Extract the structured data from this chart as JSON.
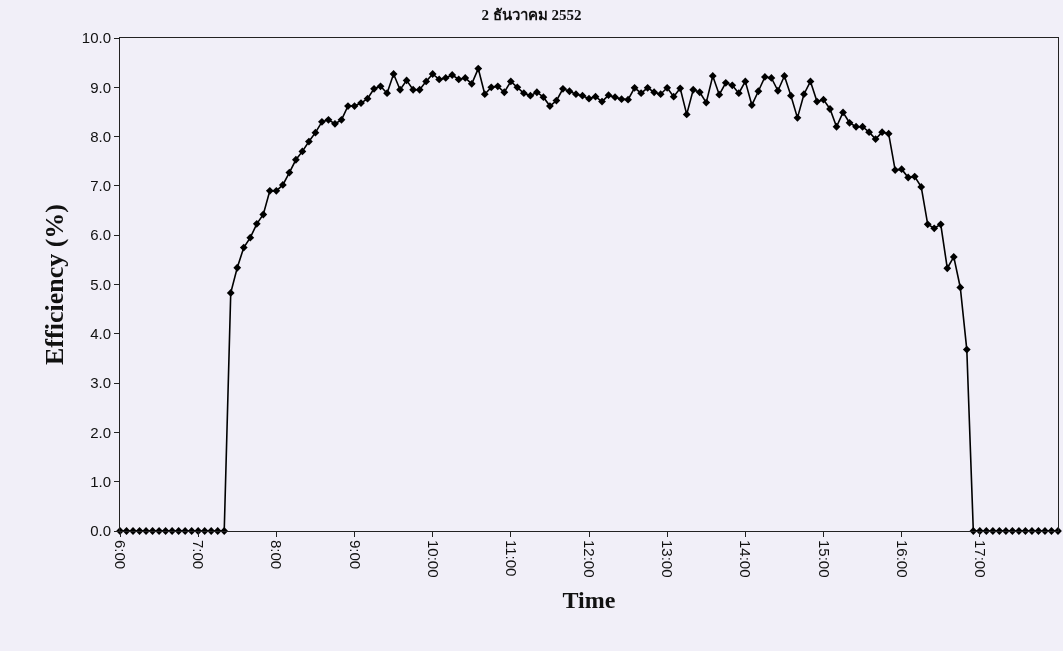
{
  "chart_data": {
    "type": "line",
    "title": "2 ธันวาคม 2552",
    "xlabel": "Time",
    "ylabel": "Efficiency (%)",
    "x": [
      6,
      6.0833,
      6.1667,
      6.25,
      6.3333,
      6.4167,
      6.5,
      6.5833,
      6.6667,
      6.75,
      6.8333,
      6.9167,
      7,
      7.0833,
      7.1667,
      7.25,
      7.3333,
      7.4167,
      7.5,
      7.5833,
      7.6667,
      7.75,
      7.8333,
      7.9167,
      8,
      8.0833,
      8.1667,
      8.25,
      8.3333,
      8.4167,
      8.5,
      8.5833,
      8.6667,
      8.75,
      8.8333,
      8.9167,
      9,
      9.0833,
      9.1667,
      9.25,
      9.3333,
      9.4167,
      9.5,
      9.5833,
      9.6667,
      9.75,
      9.8333,
      9.9167,
      10,
      10.0833,
      10.1667,
      10.25,
      10.3333,
      10.4167,
      10.5,
      10.5833,
      10.6667,
      10.75,
      10.8333,
      10.9167,
      11,
      11.0833,
      11.1667,
      11.25,
      11.3333,
      11.4167,
      11.5,
      11.5833,
      11.6667,
      11.75,
      11.8333,
      11.9167,
      12,
      12.0833,
      12.1667,
      12.25,
      12.3333,
      12.4167,
      12.5,
      12.5833,
      12.6667,
      12.75,
      12.8333,
      12.9167,
      13,
      13.0833,
      13.1667,
      13.25,
      13.3333,
      13.4167,
      13.5,
      13.5833,
      13.6667,
      13.75,
      13.8333,
      13.9167,
      14,
      14.0833,
      14.1667,
      14.25,
      14.3333,
      14.4167,
      14.5,
      14.5833,
      14.6667,
      14.75,
      14.8333,
      14.9167,
      15,
      15.0833,
      15.1667,
      15.25,
      15.3333,
      15.4167,
      15.5,
      15.5833,
      15.6667,
      15.75,
      15.8333,
      15.9167,
      16,
      16.0833,
      16.1667,
      16.25,
      16.3333,
      16.4167,
      16.5,
      16.5833,
      16.6667,
      16.75,
      16.8333,
      16.9167,
      17,
      17.0833,
      17.1667,
      17.25,
      17.3333,
      17.4167,
      17.5,
      17.5833,
      17.6667,
      17.75,
      17.8333,
      17.9167,
      18
    ],
    "series": [
      {
        "color": "#000000",
        "values": [
          0,
          0,
          0,
          0,
          0,
          0,
          0,
          0,
          0,
          0,
          0,
          0,
          0,
          0,
          0,
          0,
          0,
          4.83,
          5.34,
          5.75,
          5.95,
          6.23,
          6.42,
          6.9,
          6.9,
          7.02,
          7.27,
          7.53,
          7.7,
          7.9,
          8.08,
          8.3,
          8.34,
          8.26,
          8.34,
          8.62,
          8.62,
          8.68,
          8.77,
          8.97,
          9.02,
          8.88,
          9.27,
          8.95,
          9.14,
          8.95,
          8.95,
          9.12,
          9.27,
          9.16,
          9.19,
          9.25,
          9.16,
          9.19,
          9.07,
          9.38,
          8.86,
          9.0,
          9.02,
          8.9,
          9.12,
          9.0,
          8.88,
          8.83,
          8.9,
          8.8,
          8.62,
          8.73,
          8.97,
          8.92,
          8.86,
          8.83,
          8.77,
          8.81,
          8.71,
          8.84,
          8.8,
          8.76,
          8.75,
          8.99,
          8.88,
          8.99,
          8.9,
          8.86,
          8.99,
          8.81,
          8.98,
          8.45,
          8.95,
          8.9,
          8.69,
          9.23,
          8.85,
          9.09,
          9.04,
          8.88,
          9.12,
          8.64,
          8.92,
          9.21,
          9.19,
          8.93,
          9.23,
          8.83,
          8.38,
          8.86,
          9.12,
          8.71,
          8.75,
          8.56,
          8.2,
          8.49,
          8.28,
          8.2,
          8.2,
          8.09,
          7.95,
          8.09,
          8.06,
          7.32,
          7.34,
          7.17,
          7.19,
          6.98,
          6.22,
          6.14,
          6.22,
          5.33,
          5.56,
          4.94,
          3.68,
          0,
          0,
          0,
          0,
          0,
          0,
          0,
          0,
          0,
          0,
          0,
          0,
          0,
          0
        ]
      }
    ],
    "xlim": [
      6,
      18
    ],
    "xticks": [
      {
        "value": 6,
        "label": "6:00"
      },
      {
        "value": 7,
        "label": "7:00"
      },
      {
        "value": 8,
        "label": "8:00"
      },
      {
        "value": 9,
        "label": "9:00"
      },
      {
        "value": 10,
        "label": "10:00"
      },
      {
        "value": 11,
        "label": "11:00"
      },
      {
        "value": 12,
        "label": "12:00"
      },
      {
        "value": 13,
        "label": "13:00"
      },
      {
        "value": 14,
        "label": "14:00"
      },
      {
        "value": 15,
        "label": "15:00"
      },
      {
        "value": 16,
        "label": "16:00"
      },
      {
        "value": 17,
        "label": "17:00"
      }
    ],
    "ylim": [
      0,
      10
    ],
    "yticks": [
      {
        "value": 0,
        "label": "0.0"
      },
      {
        "value": 1,
        "label": "1.0"
      },
      {
        "value": 2,
        "label": "2.0"
      },
      {
        "value": 3,
        "label": "3.0"
      },
      {
        "value": 4,
        "label": "4.0"
      },
      {
        "value": 5,
        "label": "5.0"
      },
      {
        "value": 6,
        "label": "6.0"
      },
      {
        "value": 7,
        "label": "7.0"
      },
      {
        "value": 8,
        "label": "8.0"
      },
      {
        "value": 9,
        "label": "9.0"
      },
      {
        "value": 10,
        "label": "10.0"
      }
    ],
    "grid": false,
    "marker": "diamond",
    "line_style": "solid"
  }
}
